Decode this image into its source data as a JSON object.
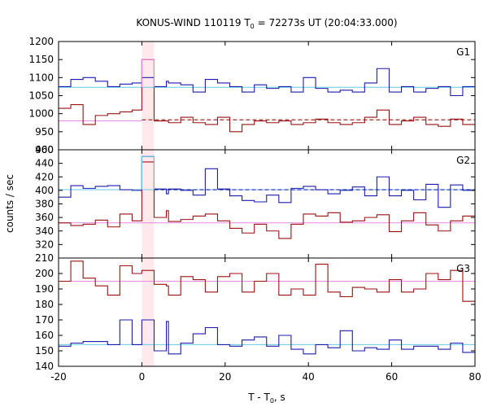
{
  "chart_data": {
    "type": "line",
    "title_main": "KONUS-WIND 110119 T",
    "title_sub": "0",
    "title_rest": " = 72273s UT (20:04:33.000)",
    "xlabel_main": "T - T",
    "xlabel_sub": "0",
    "xlabel_rest": ", s",
    "ylabel": "counts / sec",
    "xlim": [
      -20,
      80
    ],
    "xticks": [
      -20,
      0,
      20,
      40,
      60,
      80
    ],
    "highlight": [
      0,
      2.944
    ],
    "bin_edges": [
      -20,
      -17.056,
      -14.112,
      -11.168,
      -8.224,
      -5.28,
      -2.336,
      0,
      2.944,
      5.888,
      6.4,
      9.344,
      12.288,
      15.232,
      18.176,
      21.12,
      24.064,
      27.008,
      29.952,
      32.896,
      35.84,
      38.784,
      41.728,
      44.672,
      47.616,
      50.56,
      53.504,
      56.448,
      59.392,
      62.336,
      65.28,
      68.224,
      71.168,
      74.112,
      77.056,
      80
    ],
    "colors": {
      "axes": "#000000",
      "highlight_fill": "#ffe9ec",
      "blue_series": "#1c1caa",
      "red_series": "#9a1212",
      "trigger_bin": "#66c8e8",
      "blue_background": "#66c8e8",
      "red_background": "#e68ae0",
      "red_dashed": "#9a1212",
      "blue_dashed": "#1c1caa"
    },
    "panels": [
      {
        "label": "G1",
        "ylim": [
          900,
          1200
        ],
        "yticks": [
          900,
          950,
          1000,
          1050,
          1100,
          1150,
          1200
        ],
        "series": [
          {
            "role": "blue",
            "values": [
              1075,
              1095,
              1100,
              1090,
              1075,
              1082,
              1085,
              1100,
              1075,
              1090,
              1085,
              1080,
              1060,
              1095,
              1085,
              1075,
              1060,
              1080,
              1070,
              1075,
              1060,
              1100,
              1070,
              1060,
              1065,
              1060,
              1085,
              1125,
              1060,
              1075,
              1060,
              1070,
              1075,
              1050,
              1075
            ]
          },
          {
            "role": "red",
            "values": [
              1015,
              1025,
              970,
              995,
              1000,
              1005,
              1010,
              1150,
              980,
              980,
              975,
              990,
              975,
              970,
              990,
              950,
              970,
              980,
              975,
              980,
              970,
              975,
              985,
              975,
              970,
              975,
              990,
              1010,
              970,
              980,
              990,
              970,
              965,
              985,
              970
            ]
          }
        ],
        "background_lines": [
          {
            "role": "blue_background",
            "y": 1073,
            "x_from": -20,
            "x_to": 80
          },
          {
            "role": "red_background",
            "y": 980,
            "x_from": -20,
            "x_to": 0
          },
          {
            "role": "red_dashed",
            "y": 983,
            "x_from": 0,
            "x_to": 80
          }
        ]
      },
      {
        "label": "G2",
        "ylim": [
          300,
          460
        ],
        "yticks": [
          300,
          320,
          340,
          360,
          380,
          400,
          420,
          440,
          460
        ],
        "series": [
          {
            "role": "blue",
            "values": [
              390,
              407,
              403,
              406,
              407,
              401,
              400,
              450,
              402,
              395,
              402,
              400,
              393,
              432,
              402,
              392,
              385,
              383,
              393,
              382,
              403,
              406,
              401,
              395,
              400,
              405,
              392,
              420,
              392,
              400,
              386,
              409,
              375,
              408,
              400
            ]
          },
          {
            "role": "red",
            "values": [
              352,
              348,
              350,
              356,
              346,
              365,
              355,
              442,
              360,
              370,
              354,
              357,
              362,
              365,
              355,
              344,
              337,
              350,
              340,
              329,
              350,
              365,
              362,
              367,
              353,
              355,
              360,
              364,
              339,
              355,
              367,
              349,
              340,
              355,
              362
            ]
          }
        ],
        "background_lines": [
          {
            "role": "blue_background",
            "y": 401,
            "x_from": -20,
            "x_to": 80
          },
          {
            "role": "red_background",
            "y": 352,
            "x_from": -20,
            "x_to": 80
          },
          {
            "role": "blue_dashed",
            "y": 401,
            "x_from": 2.944,
            "x_to": 80
          }
        ]
      },
      {
        "label": "G3",
        "ylim": [
          140,
          210
        ],
        "yticks": [
          140,
          150,
          160,
          170,
          180,
          190,
          200,
          210
        ],
        "series": [
          {
            "role": "red",
            "values": [
              195,
              208,
              197,
              192,
              186,
              205,
              200,
              202,
              193,
              192,
              186,
              198,
              196,
              188,
              198,
              200,
              188,
              195,
              200,
              186,
              190,
              186,
              206,
              188,
              185,
              191,
              190,
              188,
              196,
              188,
              190,
              200,
              196,
              202,
              182
            ]
          },
          {
            "role": "blue",
            "values": [
              153,
              155,
              156,
              156,
              154,
              170,
              154,
              170,
              150,
              169,
              148,
              155,
              161,
              165,
              154,
              153,
              157,
              159,
              153,
              160,
              151,
              148,
              154,
              152,
              163,
              150,
              152,
              151,
              157,
              151,
              153,
              153,
              151,
              155,
              149
            ]
          }
        ],
        "background_lines": [
          {
            "role": "red_background",
            "y": 195,
            "x_from": -20,
            "x_to": 80
          },
          {
            "role": "blue_background",
            "y": 154,
            "x_from": -20,
            "x_to": 80
          }
        ]
      }
    ]
  }
}
